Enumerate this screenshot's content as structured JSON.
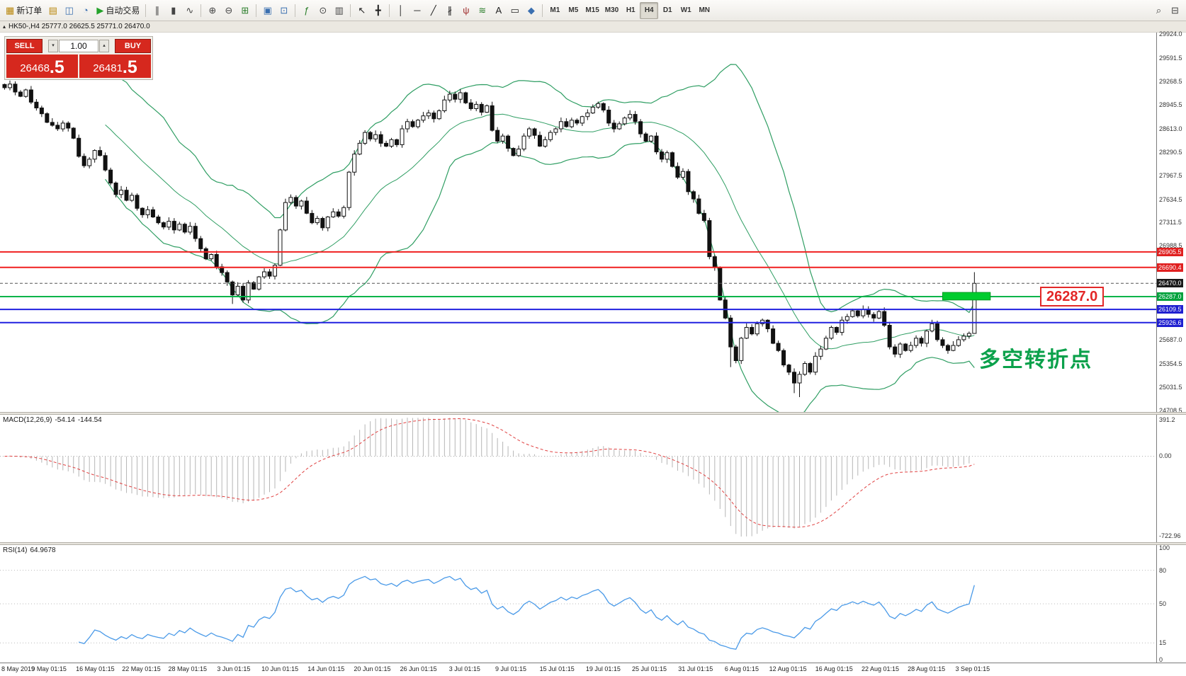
{
  "icons": {
    "collapse": "▴",
    "spin_up": "▴",
    "spin_down": "▾"
  },
  "toolbar": {
    "active_timeframe": "H4",
    "buttons": [
      {
        "name": "new-order",
        "glyph": "▦",
        "label": "新订单",
        "color": "#b8860b"
      },
      {
        "name": "chart-window",
        "glyph": "▤",
        "color": "#b8860b"
      },
      {
        "name": "profiles",
        "glyph": "◫",
        "color": "#3a6fb0"
      },
      {
        "name": "data-window",
        "glyph": "◔",
        "color": "#3a6fb0"
      },
      {
        "name": "auto-trading",
        "glyph": "▶",
        "label": "自动交易",
        "color": "#23a22a"
      },
      {
        "sep": true
      },
      {
        "name": "bar-chart-mode",
        "glyph": "∥",
        "color": "#444444"
      },
      {
        "name": "candlestick-mode",
        "glyph": "▮",
        "color": "#444444"
      },
      {
        "name": "line-chart-mode",
        "glyph": "∿",
        "color": "#444444"
      },
      {
        "sep": true
      },
      {
        "name": "zoom-in",
        "glyph": "⊕",
        "color": "#444444"
      },
      {
        "name": "zoom-out",
        "glyph": "⊖",
        "color": "#444444"
      },
      {
        "name": "auto-scroll",
        "glyph": "⊞",
        "color": "#2a7d2a"
      },
      {
        "sep": true
      },
      {
        "name": "tile-windows",
        "glyph": "▣",
        "color": "#3a6fb0"
      },
      {
        "name": "cascade-windows",
        "glyph": "⊡",
        "color": "#3a6fb0"
      },
      {
        "sep": true
      },
      {
        "name": "indicators",
        "glyph": "ƒ",
        "color": "#2a7d2a"
      },
      {
        "name": "periods",
        "glyph": "⊙",
        "color": "#444444"
      },
      {
        "name": "templates",
        "glyph": "▥",
        "color": "#444444"
      },
      {
        "sep": true
      },
      {
        "name": "cursor",
        "glyph": "↖",
        "color": "#222222"
      },
      {
        "name": "crosshair",
        "glyph": "╋",
        "color": "#222222"
      },
      {
        "sep": true
      },
      {
        "name": "vertical-line",
        "glyph": "│",
        "color": "#222222"
      },
      {
        "name": "horizontal-line",
        "glyph": "─",
        "color": "#222222"
      },
      {
        "name": "trendline",
        "glyph": "╱",
        "color": "#222222"
      },
      {
        "name": "equidistant-channel",
        "glyph": "∦",
        "color": "#222222"
      },
      {
        "name": "andrews-pitchfork",
        "glyph": "ψ",
        "color": "#a03030"
      },
      {
        "name": "fibonacci-retracement",
        "glyph": "≋",
        "color": "#2a7d2a"
      },
      {
        "name": "text",
        "glyph": "A",
        "color": "#222222"
      },
      {
        "name": "text-label",
        "glyph": "▭",
        "color": "#222222"
      },
      {
        "name": "shapes",
        "glyph": "◆",
        "color": "#3a6fb0"
      },
      {
        "sep": true
      },
      {
        "name": "timeframe",
        "tf": true,
        "label": "M1"
      },
      {
        "name": "timeframe",
        "tf": true,
        "label": "M5"
      },
      {
        "name": "timeframe",
        "tf": true,
        "label": "M15"
      },
      {
        "name": "timeframe",
        "tf": true,
        "label": "M30"
      },
      {
        "name": "timeframe",
        "tf": true,
        "label": "H1"
      },
      {
        "name": "timeframe",
        "tf": true,
        "label": "H4"
      },
      {
        "name": "timeframe",
        "tf": true,
        "label": "D1"
      },
      {
        "name": "timeframe",
        "tf": true,
        "label": "W1"
      },
      {
        "name": "timeframe",
        "tf": true,
        "label": "MN"
      }
    ],
    "right_buttons": [
      {
        "name": "search",
        "glyph": "⌕",
        "color": "#444444"
      },
      {
        "name": "open-chart",
        "glyph": "⊟",
        "color": "#444444"
      }
    ]
  },
  "chart_header": {
    "title": "HK50-,H4 25777.0 26625.5 25771.0 26470.0"
  },
  "trade_panel": {
    "sell_label": "SELL",
    "buy_label": "BUY",
    "volume": "1.00",
    "sell_price": "26468",
    "sell_pip": ".5",
    "buy_price": "26481",
    "buy_pip": ".5"
  },
  "macd": {
    "label": "MACD(12,26,9)",
    "value_macd": "-54.14",
    "value_signal": "-144.54"
  },
  "rsi": {
    "label": "RSI(14)",
    "value": "64.9678"
  },
  "annotations": {
    "turning_point": "多空转折点",
    "price_callout": "26287.0"
  },
  "chart_data": {
    "type": "candlestick",
    "symbol": "HK50-",
    "timeframe": "H4",
    "bar_spacing": 7.48,
    "closes": [
      29180,
      29230,
      29120,
      29060,
      29150,
      28980,
      28900,
      28820,
      28700,
      28660,
      28610,
      28690,
      28620,
      28480,
      28230,
      28100,
      28190,
      28310,
      28240,
      28040,
      27860,
      27700,
      27760,
      27620,
      27690,
      27510,
      27420,
      27490,
      27390,
      27310,
      27250,
      27330,
      27210,
      27290,
      27180,
      27260,
      27090,
      26950,
      26810,
      26870,
      26700,
      26620,
      26490,
      26310,
      26430,
      26240,
      26480,
      26390,
      26560,
      26630,
      26570,
      26720,
      27210,
      27590,
      27660,
      27540,
      27610,
      27440,
      27310,
      27370,
      27240,
      27390,
      27460,
      27400,
      27520,
      28010,
      28260,
      28410,
      28560,
      28470,
      28530,
      28410,
      28370,
      28460,
      28390,
      28610,
      28710,
      28640,
      28730,
      28790,
      28830,
      28750,
      28860,
      29010,
      29090,
      29020,
      29110,
      28970,
      28890,
      28950,
      28840,
      28930,
      28590,
      28440,
      28510,
      28340,
      28240,
      28330,
      28510,
      28610,
      28520,
      28370,
      28460,
      28560,
      28610,
      28710,
      28640,
      28730,
      28690,
      28780,
      28830,
      28910,
      28960,
      28870,
      28690,
      28610,
      28680,
      28760,
      28810,
      28710,
      28540,
      28440,
      28510,
      28290,
      28190,
      28280,
      28090,
      27940,
      28020,
      27740,
      27640,
      27440,
      27340,
      26840,
      26690,
      26240,
      25990,
      25590,
      25400,
      25710,
      25860,
      25770,
      25910,
      25960,
      25840,
      25640,
      25540,
      25340,
      25240,
      25090,
      25210,
      25360,
      25240,
      25460,
      25560,
      25710,
      25860,
      25790,
      25960,
      26010,
      26090,
      26020,
      26110,
      26040,
      25990,
      26080,
      25890,
      25590,
      25490,
      25630,
      25540,
      25610,
      25710,
      25640,
      25810,
      25910,
      25690,
      25610,
      25540,
      25610,
      25690,
      25740,
      25777,
      26470
    ],
    "last_bar": {
      "open": 25777.0,
      "high": 26625.5,
      "low": 25771.0,
      "close": 26470.0
    },
    "low_overrides": {
      "43": 26185,
      "137": 25310,
      "149": 24950,
      "150": 24895
    },
    "high_overrides": {
      "86": 29160
    },
    "bollinger": {
      "period": 20,
      "deviation": 2,
      "color": "#2f9e63"
    },
    "price_axis": {
      "min": 24708.5,
      "max": 29924.0,
      "ticks": [
        29924.0,
        29591.5,
        29268.5,
        28945.5,
        28613.0,
        28290.5,
        27967.5,
        27634.5,
        27311.5,
        26988.5,
        25687.0,
        25354.5,
        25031.5,
        24708.5
      ]
    },
    "hlines": [
      {
        "price": 26905.5,
        "label": "26905.5",
        "color": "#f02020",
        "badge": "#e02020",
        "width": 2
      },
      {
        "price": 26690.4,
        "label": "26690.4",
        "color": "#f02020",
        "badge": "#e02020",
        "width": 2
      },
      {
        "price": 26470.0,
        "label": "26470.0",
        "color": "#555555",
        "badge": "#1a1a1a",
        "width": 1,
        "style": "dashed"
      },
      {
        "price": 26287.0,
        "label": "26287.0",
        "color": "#00b44a",
        "badge": "#00a13c",
        "width": 2
      },
      {
        "price": 26109.5,
        "label": "26109.5",
        "color": "#2020e0",
        "badge": "#1f1fd0",
        "width": 2
      },
      {
        "price": 25926.6,
        "label": "25926.6",
        "color": "#2020e0",
        "badge": "#1f1fd0",
        "width": 2
      }
    ],
    "highlight_box": {
      "bar_start": 177,
      "bar_end": 186,
      "price_top": 26345,
      "price_bottom": 26240,
      "color": "#00cc2e",
      "border": "#009a20"
    },
    "macd": {
      "fast": 12,
      "slow": 26,
      "signal": 9,
      "axis_ticks": [
        "391.2",
        "0.00",
        "-722.96"
      ],
      "hist_color": "#b6b6b6",
      "signal_color": "#e04040"
    },
    "rsi": {
      "period": 14,
      "levels": [
        80,
        50,
        15
      ],
      "axis_ticks": [
        100,
        80,
        50,
        15,
        0
      ],
      "current": 64.9678,
      "color": "#4a9ae8"
    },
    "x_labels": [
      "8 May 2019",
      "9 May 01:15",
      "16 May 01:15",
      "22 May 01:15",
      "28 May 01:15",
      "3 Jun 01:15",
      "10 Jun 01:15",
      "14 Jun 01:15",
      "20 Jun 01:15",
      "26 Jun 01:15",
      "3 Jul 01:15",
      "9 Jul 01:15",
      "15 Jul 01:15",
      "19 Jul 01:15",
      "25 Jul 01:15",
      "31 Jul 01:15",
      "6 Aug 01:15",
      "12 Aug 01:15",
      "16 Aug 01:15",
      "22 Aug 01:15",
      "28 Aug 01:15",
      "3 Sep 01:15"
    ]
  }
}
